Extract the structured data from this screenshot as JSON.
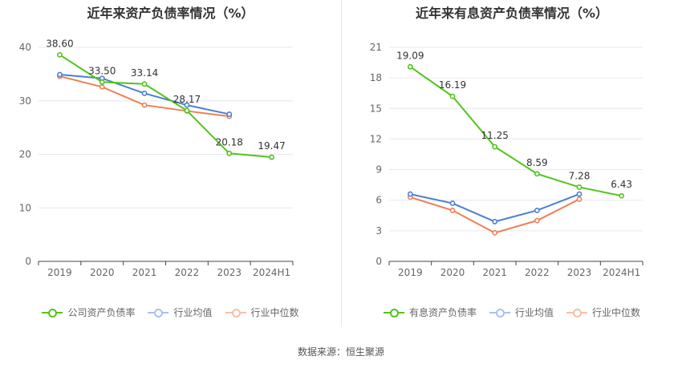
{
  "chart_data": [
    {
      "type": "line",
      "title": "近年来资产负债率情况（%）",
      "categories": [
        "2019",
        "2020",
        "2021",
        "2022",
        "2023",
        "2024H1"
      ],
      "ylim": [
        0,
        40
      ],
      "yticks": [
        0,
        10,
        20,
        30,
        40
      ],
      "grid": true,
      "legend_position": "bottom",
      "series": [
        {
          "name": "公司资产负债率",
          "color": "#52c41a",
          "values": [
            38.6,
            33.5,
            33.14,
            28.17,
            20.18,
            19.47
          ],
          "labels": [
            "38.60",
            "33.50",
            "33.14",
            "28.17",
            "20.18",
            "19.47"
          ]
        },
        {
          "name": "行业均值",
          "color": "#4a7fd4",
          "values": [
            34.9,
            34.2,
            31.4,
            29.2,
            27.5,
            null
          ]
        },
        {
          "name": "行业中位数",
          "color": "#ee7f55",
          "values": [
            34.6,
            32.6,
            29.2,
            28.1,
            27.1,
            null
          ]
        }
      ]
    },
    {
      "type": "line",
      "title": "近年来有息资产负债率情况（%）",
      "categories": [
        "2019",
        "2020",
        "2021",
        "2022",
        "2023",
        "2024H1"
      ],
      "ylim": [
        0,
        21
      ],
      "yticks": [
        0,
        3,
        6,
        9,
        12,
        15,
        18,
        21
      ],
      "grid": true,
      "legend_position": "bottom",
      "series": [
        {
          "name": "有息资产负债率",
          "color": "#52c41a",
          "values": [
            19.09,
            16.19,
            11.25,
            8.59,
            7.28,
            6.43
          ],
          "labels": [
            "19.09",
            "16.19",
            "11.25",
            "8.59",
            "7.28",
            "6.43"
          ]
        },
        {
          "name": "行业均值",
          "color": "#4a7fd4",
          "values": [
            6.6,
            5.7,
            3.9,
            5.0,
            6.6,
            null
          ]
        },
        {
          "name": "行业中位数",
          "color": "#ee7f55",
          "values": [
            6.3,
            5.0,
            2.8,
            4.0,
            6.1,
            null
          ]
        }
      ]
    }
  ],
  "footer": {
    "source": "数据来源：恒生聚源"
  }
}
